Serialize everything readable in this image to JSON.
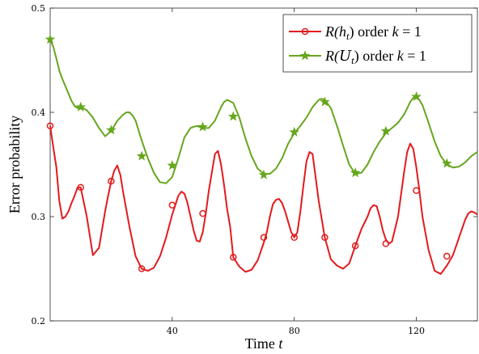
{
  "chart_data": {
    "type": "line",
    "xlabel_text": "Time ",
    "xlabel_var": "t",
    "ylabel": "Error probability",
    "xlim": [
      0,
      140
    ],
    "ylim": [
      0.2,
      0.5
    ],
    "xticks": [
      40,
      80,
      120
    ],
    "xtick_labels": [
      "40",
      "80",
      "120"
    ],
    "yticks": [
      0.2,
      0.3,
      0.4,
      0.5
    ],
    "ytick_labels": [
      "0.2",
      "0.3",
      "0.4",
      "0.5"
    ],
    "legend": {
      "placement": "top-right"
    },
    "series": [
      {
        "name": "R(h_t) order k = 1",
        "legend_math": "R(h",
        "legend_sub": "t",
        "legend_rest": ") order ",
        "legend_var": "k",
        "legend_eq": " = 1",
        "color": "#e31a1c",
        "marker": "circle",
        "x": [
          0,
          1,
          2,
          3,
          4,
          5,
          6,
          7,
          8,
          9,
          10,
          12,
          14,
          16,
          18,
          19,
          20,
          21,
          22,
          23,
          24,
          26,
          28,
          30,
          32,
          34,
          36,
          38,
          40,
          41,
          42,
          43,
          44,
          45,
          46,
          47,
          48,
          49,
          50,
          51,
          52,
          54,
          55,
          56,
          57,
          58,
          59,
          60,
          62,
          64,
          66,
          68,
          70,
          71,
          72,
          73,
          74,
          75,
          76,
          77,
          78,
          79,
          80,
          81,
          82,
          83,
          84,
          85,
          86,
          88,
          90,
          92,
          94,
          96,
          98,
          100,
          102,
          104,
          105,
          106,
          107,
          108,
          109,
          110,
          111,
          112,
          114,
          116,
          117,
          118,
          119,
          120,
          121,
          122,
          124,
          126,
          128,
          130,
          132,
          134,
          136,
          137,
          138,
          139,
          140
        ],
        "y": [
          0.387,
          0.367,
          0.348,
          0.315,
          0.298,
          0.3,
          0.305,
          0.313,
          0.32,
          0.328,
          0.328,
          0.3,
          0.263,
          0.27,
          0.305,
          0.32,
          0.334,
          0.344,
          0.349,
          0.34,
          0.322,
          0.29,
          0.262,
          0.25,
          0.248,
          0.251,
          0.262,
          0.28,
          0.302,
          0.311,
          0.32,
          0.324,
          0.322,
          0.313,
          0.3,
          0.287,
          0.277,
          0.276,
          0.285,
          0.303,
          0.325,
          0.36,
          0.363,
          0.35,
          0.33,
          0.307,
          0.29,
          0.261,
          0.252,
          0.247,
          0.249,
          0.258,
          0.275,
          0.285,
          0.3,
          0.312,
          0.316,
          0.317,
          0.313,
          0.305,
          0.295,
          0.285,
          0.28,
          0.285,
          0.305,
          0.33,
          0.353,
          0.362,
          0.36,
          0.315,
          0.28,
          0.259,
          0.253,
          0.25,
          0.255,
          0.272,
          0.288,
          0.3,
          0.308,
          0.311,
          0.31,
          0.3,
          0.287,
          0.278,
          0.274,
          0.276,
          0.3,
          0.343,
          0.362,
          0.37,
          0.365,
          0.347,
          0.325,
          0.3,
          0.268,
          0.248,
          0.245,
          0.253,
          0.263,
          0.28,
          0.297,
          0.303,
          0.305,
          0.304,
          0.302
        ],
        "markers_x": [
          0,
          10,
          20,
          30,
          40,
          50,
          60,
          70,
          80,
          90,
          100,
          110,
          120,
          130
        ],
        "markers_y": [
          0.387,
          0.328,
          0.334,
          0.25,
          0.311,
          0.303,
          0.261,
          0.28,
          0.28,
          0.28,
          0.272,
          0.274,
          0.325,
          0.262
        ]
      },
      {
        "name": "R(U_t) order k = 1",
        "legend_math": "R(",
        "legend_cal": "U",
        "legend_sub": "t",
        "legend_rest": ") order ",
        "legend_var": "k",
        "legend_eq": " = 1",
        "color": "#66a61e",
        "marker": "star",
        "x": [
          0,
          1,
          2,
          3,
          4,
          5,
          6,
          7,
          8,
          9,
          10,
          12,
          14,
          16,
          18,
          20,
          22,
          24,
          25,
          26,
          27,
          28,
          30,
          32,
          34,
          36,
          38,
          40,
          42,
          44,
          46,
          48,
          50,
          52,
          54,
          56,
          57,
          58,
          60,
          62,
          64,
          66,
          68,
          70,
          72,
          74,
          76,
          78,
          80,
          82,
          84,
          86,
          88,
          89,
          90,
          92,
          94,
          96,
          98,
          100,
          102,
          104,
          106,
          108,
          110,
          112,
          114,
          116,
          118,
          119,
          120,
          121,
          122,
          124,
          126,
          128,
          130,
          132,
          134,
          136,
          138,
          140
        ],
        "y": [
          0.47,
          0.463,
          0.452,
          0.44,
          0.432,
          0.425,
          0.418,
          0.411,
          0.406,
          0.404,
          0.405,
          0.402,
          0.395,
          0.385,
          0.377,
          0.382,
          0.392,
          0.398,
          0.4,
          0.4,
          0.397,
          0.392,
          0.373,
          0.356,
          0.342,
          0.333,
          0.332,
          0.338,
          0.356,
          0.376,
          0.385,
          0.387,
          0.385,
          0.385,
          0.392,
          0.405,
          0.41,
          0.412,
          0.409,
          0.395,
          0.375,
          0.358,
          0.346,
          0.341,
          0.341,
          0.346,
          0.356,
          0.37,
          0.38,
          0.387,
          0.395,
          0.405,
          0.412,
          0.413,
          0.412,
          0.404,
          0.387,
          0.368,
          0.35,
          0.341,
          0.342,
          0.35,
          0.362,
          0.372,
          0.38,
          0.385,
          0.39,
          0.398,
          0.41,
          0.414,
          0.415,
          0.412,
          0.407,
          0.39,
          0.372,
          0.358,
          0.35,
          0.347,
          0.348,
          0.352,
          0.358,
          0.362
        ],
        "markers_x": [
          0,
          10,
          20,
          30,
          40,
          50,
          60,
          70,
          80,
          90,
          100,
          110,
          120,
          130
        ],
        "markers_y": [
          0.47,
          0.405,
          0.383,
          0.358,
          0.349,
          0.386,
          0.396,
          0.34,
          0.381,
          0.41,
          0.342,
          0.382,
          0.415,
          0.351
        ]
      }
    ]
  }
}
